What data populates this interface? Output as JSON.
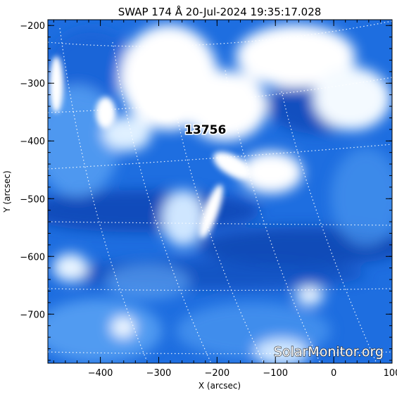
{
  "chart_data": {
    "type": "image",
    "title": "SWAP 174 Å 20-Jul-2024 19:35:17.028",
    "xlabel": "X (arcsec)",
    "ylabel": "Y (arcsec)",
    "xlim": [
      -490,
      100
    ],
    "ylim": [
      -785,
      -190
    ],
    "xticks": [
      -400,
      -300,
      -200,
      -100,
      0,
      100
    ],
    "yticks": [
      -200,
      -300,
      -400,
      -500,
      -600,
      -700
    ],
    "xtick_labels": [
      "−400",
      "−300",
      "−200",
      "−100",
      "0",
      "100"
    ],
    "ytick_labels": [
      "−200",
      "−300",
      "−400",
      "−500",
      "−600",
      "−700"
    ],
    "colormap": [
      "#08327e",
      "#1565d6",
      "#4a98f2",
      "#bfe0ff",
      "#ffffff"
    ],
    "grid": "heliographic dotted white",
    "annotations": [
      {
        "text": "13756",
        "x": -220,
        "y": -380
      }
    ],
    "watermark": "SolarMonitor.org"
  }
}
